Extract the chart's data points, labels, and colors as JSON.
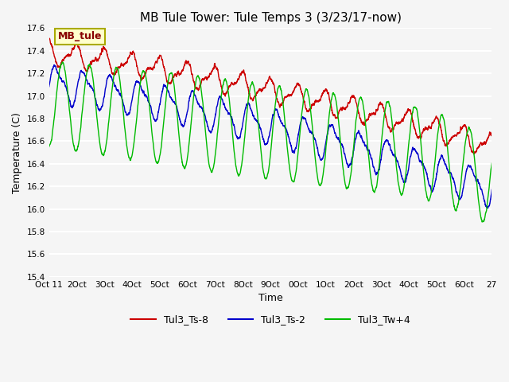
{
  "title": "MB Tule Tower: Tule Temps 3 (3/23/17-now)",
  "ylabel": "Temperature (C)",
  "xlabel": "Time",
  "mb_tule_label": "MB_tule",
  "series_labels": [
    "Tul3_Ts-8",
    "Tul3_Ts-2",
    "Tul3_Tw+4"
  ],
  "series_colors": [
    "#cc0000",
    "#0000cc",
    "#00bb00"
  ],
  "ylim": [
    15.4,
    17.6
  ],
  "xlim": [
    0,
    16
  ],
  "bg_color": "#f0f0f0",
  "plot_bg_color": "#f5f5f5",
  "grid_color": "#ffffff",
  "xtick_labels": [
    "Oct 11",
    "2Oct",
    "3Oct",
    "4Oct",
    "5Oct",
    "6Oct",
    "7Oct",
    "8Oct",
    "9Oct",
    "0Oct",
    "1Oct",
    "2Oct",
    "3Oct",
    "4Oct",
    "5Oct",
    "6Oct",
    "27"
  ],
  "title_fontsize": 11,
  "axis_label_fontsize": 9,
  "tick_fontsize": 7.5,
  "legend_fontsize": 9,
  "linewidth": 1.0,
  "seed": 42
}
